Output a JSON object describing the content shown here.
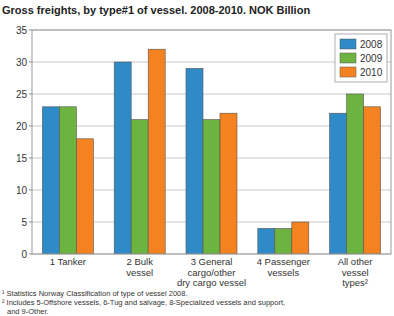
{
  "chart_data": {
    "type": "bar",
    "title": "Gross freights, by type#1 of vessel. 2008-2010. NOK Billion",
    "categories": [
      "1 Tanker",
      "2  Bulk\nvessel",
      "3 General\ncargo/other\ndry cargo vessel",
      "4 Passenger\nvessels",
      "All other\nvessel\ntypes²"
    ],
    "series": [
      {
        "name": "2008",
        "color": "#2e8bc7",
        "values": [
          23,
          30,
          29,
          4,
          22
        ]
      },
      {
        "name": "2009",
        "color": "#6cb33f",
        "values": [
          23,
          21,
          21,
          4,
          25
        ]
      },
      {
        "name": "2010",
        "color": "#f58220",
        "values": [
          18,
          32,
          22,
          5,
          23
        ]
      }
    ],
    "ylim": [
      0,
      35
    ],
    "yticks": [
      0,
      5,
      10,
      15,
      20,
      25,
      30,
      35
    ],
    "grid": true,
    "legend": "upper right",
    "annotations": [
      "¹ Statistics Norway Classification of type of vessel 2008.",
      "² Includes 5-Offshore vessels, 6-Tug and salvage, 8-Specialized vessels and support,\nand 9-Other."
    ]
  }
}
